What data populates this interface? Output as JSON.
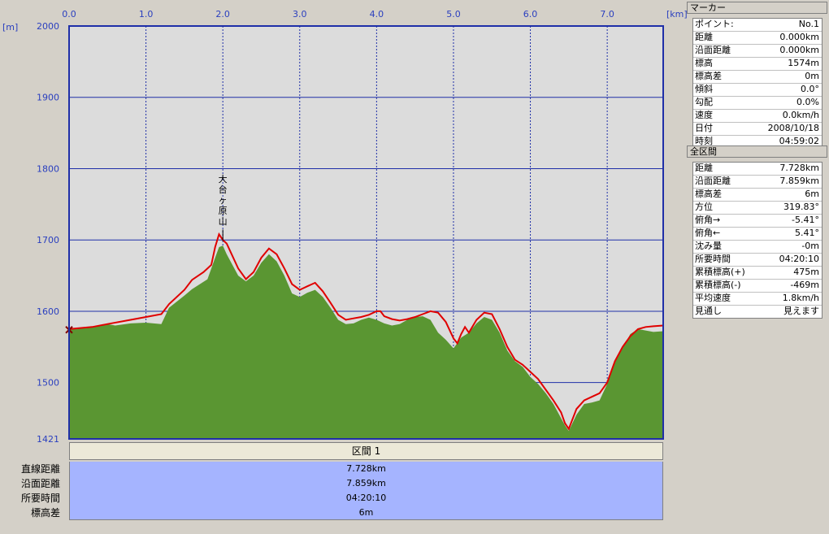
{
  "chart_data": {
    "type": "area",
    "x_unit": "[km]",
    "y_unit": "[m]",
    "x_ticks": [
      "0.0",
      "1.0",
      "2.0",
      "3.0",
      "4.0",
      "5.0",
      "6.0",
      "7.0"
    ],
    "y_ticks": [
      "2000",
      "1900",
      "1800",
      "1700",
      "1600",
      "1500",
      "1421"
    ],
    "xlim": [
      0,
      7.728
    ],
    "ylim": [
      1421,
      2000
    ],
    "grid": true,
    "annotation": {
      "text": "大台ヶ原山",
      "x": 2.0,
      "y": 1710
    },
    "series": [
      {
        "type": "terrain-area",
        "color": "#5a9632",
        "x": [
          0,
          0.3,
          0.5,
          0.6,
          0.8,
          1.0,
          1.2,
          1.3,
          1.5,
          1.6,
          1.8,
          1.9,
          1.95,
          2.0,
          2.05,
          2.2,
          2.3,
          2.4,
          2.5,
          2.6,
          2.7,
          2.8,
          2.9,
          3.0,
          3.1,
          3.2,
          3.3,
          3.4,
          3.5,
          3.6,
          3.7,
          3.8,
          3.9,
          4.0,
          4.1,
          4.2,
          4.3,
          4.4,
          4.5,
          4.6,
          4.7,
          4.8,
          4.9,
          5.0,
          5.1,
          5.2,
          5.3,
          5.4,
          5.5,
          5.6,
          5.7,
          5.8,
          5.9,
          6.0,
          6.1,
          6.2,
          6.3,
          6.4,
          6.45,
          6.5,
          6.6,
          6.7,
          6.8,
          6.9,
          7.0,
          7.1,
          7.2,
          7.3,
          7.4,
          7.5,
          7.6,
          7.728
        ],
        "y": [
          1574,
          1578,
          1582,
          1580,
          1583,
          1584,
          1582,
          1605,
          1622,
          1631,
          1645,
          1675,
          1690,
          1692,
          1680,
          1650,
          1642,
          1650,
          1668,
          1680,
          1670,
          1650,
          1625,
          1620,
          1626,
          1630,
          1620,
          1605,
          1588,
          1582,
          1583,
          1588,
          1591,
          1588,
          1583,
          1580,
          1582,
          1588,
          1592,
          1593,
          1588,
          1570,
          1560,
          1548,
          1563,
          1570,
          1583,
          1592,
          1588,
          1570,
          1545,
          1530,
          1522,
          1508,
          1498,
          1485,
          1470,
          1450,
          1440,
          1432,
          1455,
          1470,
          1472,
          1475,
          1498,
          1530,
          1548,
          1568,
          1575,
          1573,
          1571,
          1572
        ]
      },
      {
        "type": "gps-track",
        "color": "#e00000",
        "x": [
          0,
          0.3,
          0.5,
          0.8,
          1.0,
          1.2,
          1.3,
          1.5,
          1.6,
          1.75,
          1.85,
          1.9,
          1.95,
          2.0,
          2.05,
          2.2,
          2.3,
          2.4,
          2.5,
          2.6,
          2.7,
          2.8,
          2.9,
          3.0,
          3.1,
          3.2,
          3.3,
          3.4,
          3.5,
          3.6,
          3.7,
          3.8,
          3.9,
          4.0,
          4.05,
          4.1,
          4.2,
          4.3,
          4.4,
          4.5,
          4.6,
          4.7,
          4.8,
          4.9,
          5.0,
          5.05,
          5.1,
          5.15,
          5.2,
          5.3,
          5.4,
          5.5,
          5.6,
          5.7,
          5.8,
          5.9,
          6.0,
          6.1,
          6.2,
          6.3,
          6.4,
          6.45,
          6.5,
          6.6,
          6.7,
          6.8,
          6.9,
          7.0,
          7.1,
          7.2,
          7.3,
          7.4,
          7.5,
          7.6,
          7.728
        ],
        "y": [
          1575,
          1578,
          1582,
          1588,
          1592,
          1596,
          1610,
          1630,
          1644,
          1655,
          1665,
          1690,
          1708,
          1700,
          1695,
          1660,
          1645,
          1655,
          1675,
          1688,
          1680,
          1660,
          1638,
          1630,
          1635,
          1640,
          1628,
          1612,
          1595,
          1588,
          1590,
          1592,
          1595,
          1600,
          1600,
          1593,
          1589,
          1587,
          1589,
          1592,
          1596,
          1600,
          1598,
          1585,
          1562,
          1555,
          1568,
          1578,
          1570,
          1588,
          1598,
          1596,
          1575,
          1550,
          1532,
          1525,
          1515,
          1505,
          1490,
          1475,
          1458,
          1443,
          1435,
          1463,
          1475,
          1480,
          1485,
          1500,
          1530,
          1550,
          1565,
          1575,
          1578,
          1579,
          1580
        ]
      }
    ]
  },
  "section": {
    "header": "区間 1",
    "rows": [
      {
        "label": "直線距離",
        "value": "7.728km"
      },
      {
        "label": "沿面距離",
        "value": "7.859km"
      },
      {
        "label": "所要時間",
        "value": "04:20:10"
      },
      {
        "label": "標高差",
        "value": "6m"
      }
    ]
  },
  "marker_panel": {
    "title": "マーカー",
    "rows": [
      {
        "label": "ポイント:",
        "value": "No.1"
      },
      {
        "label": "距離",
        "value": "0.000km"
      },
      {
        "label": "沿面距離",
        "value": "0.000km"
      },
      {
        "label": "標高",
        "value": "1574m"
      },
      {
        "label": "標高差",
        "value": "0m"
      },
      {
        "label": "傾斜",
        "value": "0.0°"
      },
      {
        "label": "勾配",
        "value": "0.0%"
      },
      {
        "label": "速度",
        "value": "0.0km/h"
      },
      {
        "label": "日付",
        "value": "2008/10/18"
      },
      {
        "label": "時刻",
        "value": "04:59:02"
      }
    ]
  },
  "total_panel": {
    "title": "全区間",
    "rows": [
      {
        "label": "距離",
        "value": "7.728km"
      },
      {
        "label": "沿面距離",
        "value": "7.859km"
      },
      {
        "label": "標高差",
        "value": "6m"
      },
      {
        "label": "方位",
        "value": "319.83°"
      },
      {
        "label": "俯角→",
        "value": "-5.41°"
      },
      {
        "label": "俯角←",
        "value": "5.41°"
      },
      {
        "label": "沈み量",
        "value": "-0m"
      },
      {
        "label": "所要時間",
        "value": "04:20:10"
      },
      {
        "label": "累積標高(+)",
        "value": "475m"
      },
      {
        "label": "累積標高(-)",
        "value": "-469m"
      },
      {
        "label": "平均速度",
        "value": "1.8km/h"
      },
      {
        "label": "見通し",
        "value": "見えます"
      }
    ]
  }
}
